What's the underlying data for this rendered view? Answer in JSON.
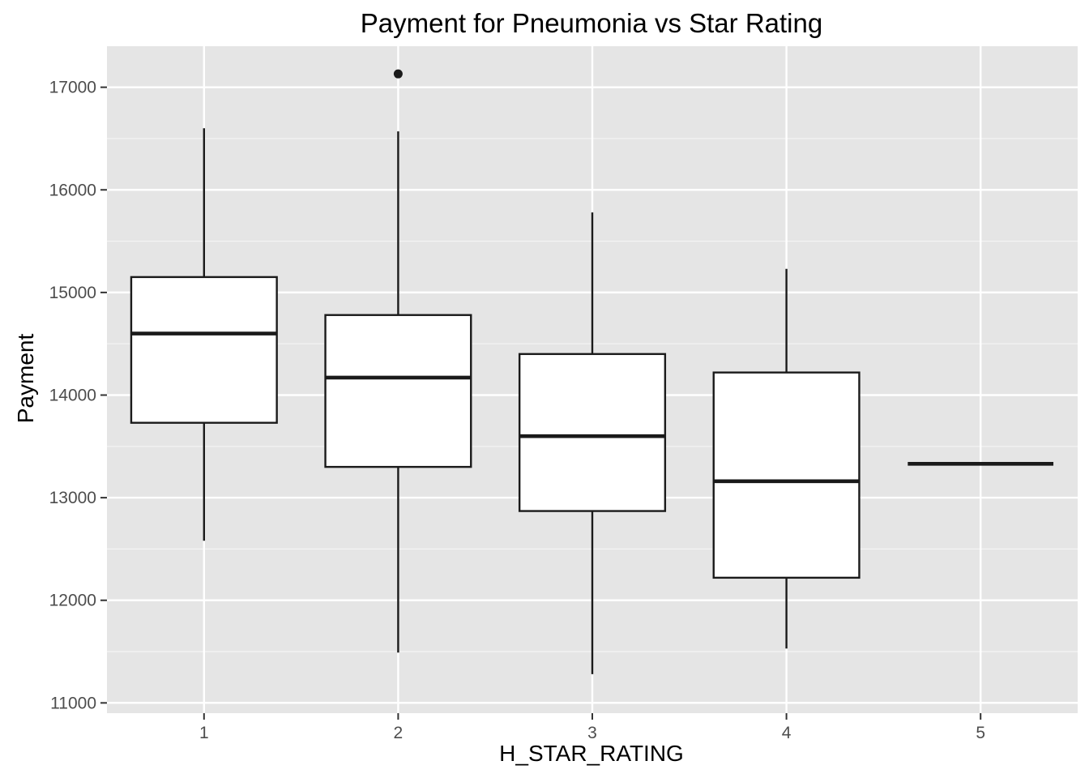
{
  "chart_data": {
    "type": "boxplot",
    "title": "Payment for Pneumonia vs Star Rating",
    "xlabel": "H_STAR_RATING",
    "ylabel": "Payment",
    "categories": [
      "1",
      "2",
      "3",
      "4",
      "5"
    ],
    "ylim": [
      10900,
      17400
    ],
    "yticks": [
      11000,
      12000,
      13000,
      14000,
      15000,
      16000,
      17000
    ],
    "ytick_labels": [
      "11000",
      "12000",
      "13000",
      "14000",
      "15000",
      "16000",
      "17000"
    ],
    "boxes": [
      {
        "category": "1",
        "whisker_low": 12580,
        "q1": 13730,
        "median": 14600,
        "q3": 15150,
        "whisker_high": 16600,
        "outliers": []
      },
      {
        "category": "2",
        "whisker_low": 11490,
        "q1": 13300,
        "median": 14170,
        "q3": 14780,
        "whisker_high": 16570,
        "outliers": [
          17130
        ]
      },
      {
        "category": "3",
        "whisker_low": 11280,
        "q1": 12870,
        "median": 13600,
        "q3": 14400,
        "whisker_high": 15780,
        "outliers": []
      },
      {
        "category": "4",
        "whisker_low": 11530,
        "q1": 12220,
        "median": 13160,
        "q3": 14220,
        "whisker_high": 15230,
        "outliers": []
      },
      {
        "category": "5",
        "whisker_low": 13330,
        "q1": 13330,
        "median": 13330,
        "q3": 13330,
        "whisker_high": 13330,
        "outliers": []
      }
    ],
    "grid": true,
    "colors": {
      "panel": "#e5e5e5",
      "grid_major": "#ffffff",
      "box_fill": "#ffffff",
      "box_line": "#1a1a1a",
      "tick": "#333333"
    }
  }
}
